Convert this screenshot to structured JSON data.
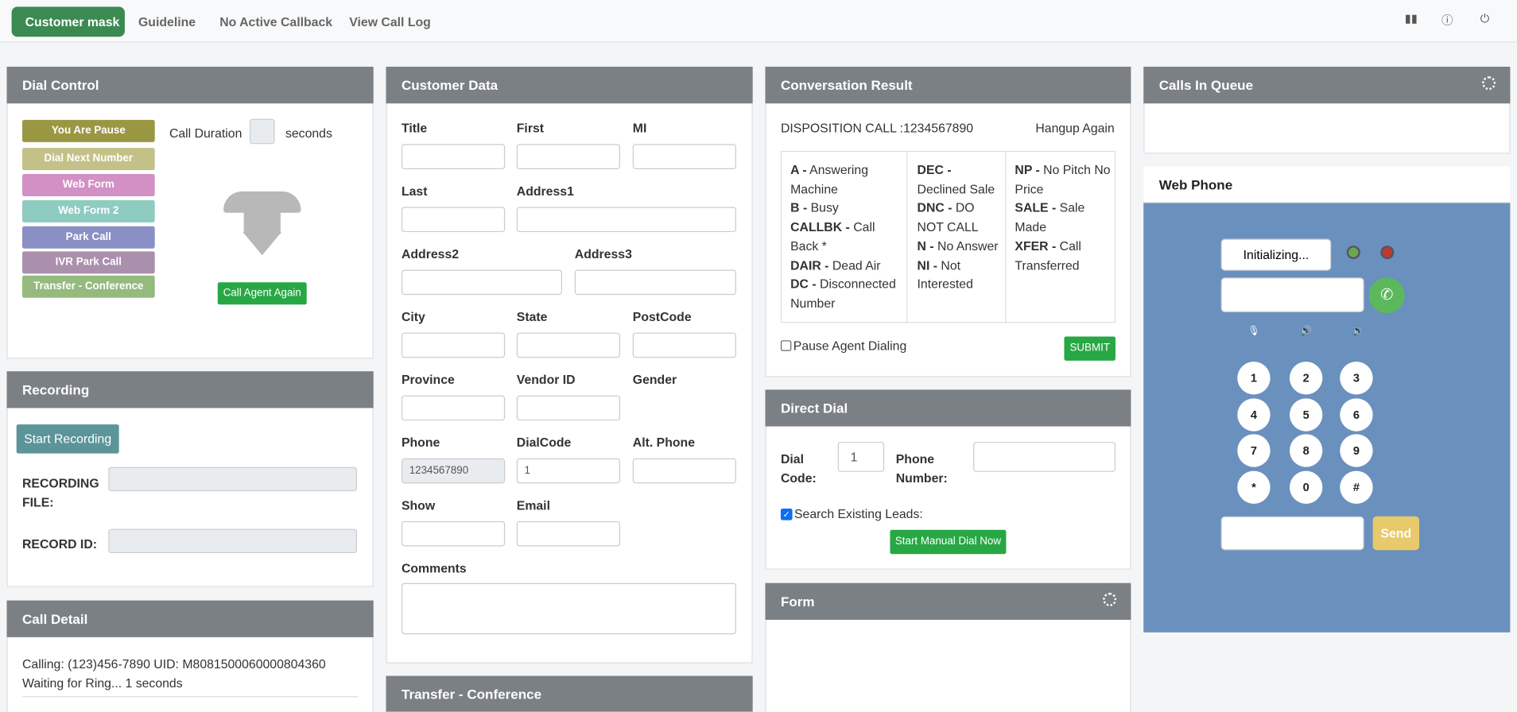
{
  "nav": {
    "tabs": [
      "Customer mask",
      "Guideline",
      "No Active Callback",
      "View Call Log"
    ]
  },
  "dial_control": {
    "title": "Dial Control",
    "buttons": [
      "You Are Pause",
      "Dial Next Number",
      "Web Form",
      "Web Form 2",
      "Park Call",
      "IVR Park Call",
      "Transfer - Conference"
    ],
    "call_duration": "Call Duration",
    "seconds": "seconds",
    "call_again": "Call Agent Again"
  },
  "recording": {
    "title": "Recording",
    "start": "Start Recording",
    "file_label": "RECORDING FILE:",
    "id_label": "RECORD ID:"
  },
  "call_detail": {
    "title": "Call Detail",
    "text": "Calling: (123)456-7890 UID: M8081500060000804360  Waiting for Ring... 1 seconds"
  },
  "customer_data": {
    "title": "Customer Data",
    "fields": [
      {
        "label": "Title"
      },
      {
        "label": "First"
      },
      {
        "label": "MI"
      },
      {
        "label": "Last"
      },
      {
        "label": "Address1"
      },
      {
        "label": "Address2"
      },
      {
        "label": "Address3"
      },
      {
        "label": "City"
      },
      {
        "label": "State"
      },
      {
        "label": "PostCode"
      },
      {
        "label": "Province"
      },
      {
        "label": "Vendor ID"
      },
      {
        "label": "Gender"
      },
      {
        "label": "Phone",
        "value": "1234567890"
      },
      {
        "label": "DialCode",
        "value": "1"
      },
      {
        "label": "Alt. Phone"
      },
      {
        "label": "Show"
      },
      {
        "label": "Email"
      }
    ],
    "comments": "Comments"
  },
  "transfer": {
    "title": "Transfer - Conference"
  },
  "conversation": {
    "title": "Conversation Result",
    "disposition": "DISPOSITION CALL :1234567890",
    "hangup": "Hangup Again",
    "columns": [
      [
        {
          "code": "A -",
          "text": "Answering Machine"
        },
        {
          "code": "B -",
          "text": "Busy"
        },
        {
          "code": "CALLBK -",
          "text": "Call Back *"
        },
        {
          "code": "DAIR -",
          "text": "Dead Air"
        },
        {
          "code": "DC -",
          "text": "Disconnected Number"
        }
      ],
      [
        {
          "code": "DEC -",
          "text": "Declined Sale"
        },
        {
          "code": "DNC -",
          "text": "DO NOT CALL"
        },
        {
          "code": "N -",
          "text": "No Answer"
        },
        {
          "code": "NI -",
          "text": "Not Interested"
        }
      ],
      [
        {
          "code": "NP -",
          "text": "No Pitch No Price"
        },
        {
          "code": "SALE -",
          "text": "Sale Made"
        },
        {
          "code": "XFER -",
          "text": "Call Transferred"
        }
      ]
    ],
    "pause": "Pause Agent Dialing",
    "submit": "SUBMIT"
  },
  "direct_dial": {
    "title": "Direct Dial",
    "dial_code_label": "Dial Code:",
    "dial_code_value": "1",
    "phone_label": "Phone Number:",
    "search": "Search Existing Leads:",
    "start": "Start Manual Dial Now"
  },
  "form": {
    "title": "Form"
  },
  "queue": {
    "title": "Calls In Queue"
  },
  "web_phone": {
    "title": "Web Phone",
    "status": "Initializing...",
    "keys": [
      "1",
      "2",
      "3",
      "4",
      "5",
      "6",
      "7",
      "8",
      "9",
      "*",
      "0",
      "#"
    ],
    "send": "Send"
  }
}
